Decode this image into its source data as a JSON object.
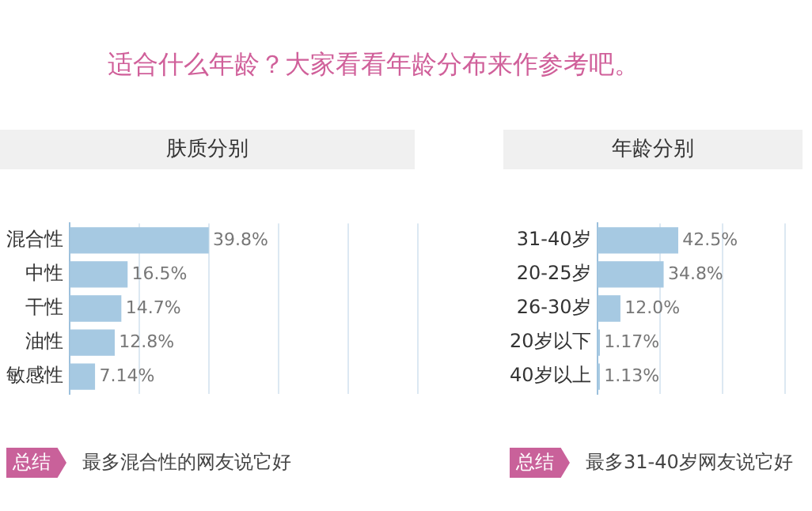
{
  "chart_data": [
    {
      "type": "bar",
      "orientation": "horizontal",
      "title": "肤质分别",
      "annotations": [
        "适合什么年龄？大家看看年龄分布来作参考吧。",
        "总结",
        "最多混合性的网友说它好"
      ],
      "categories": [
        "混合性",
        "中性",
        "干性",
        "油性",
        "敏感性"
      ],
      "values": [
        39.8,
        16.5,
        14.7,
        12.8,
        7.14
      ],
      "value_labels": [
        "39.8%",
        "16.5%",
        "14.7%",
        "12.8%",
        "7.14%"
      ],
      "color": "#a6c9e2",
      "xlim": [
        0,
        100
      ],
      "xticks": [
        {
          "value": 0,
          "label": null
        },
        {
          "value": 20,
          "label": null
        },
        {
          "value": 40,
          "label": null
        },
        {
          "value": 60,
          "label": null
        },
        {
          "value": 80,
          "label": null
        },
        {
          "value": 100,
          "label": null
        }
      ],
      "tick_labels": "y",
      "grid": "x"
    },
    {
      "type": "bar",
      "orientation": "horizontal",
      "title": "年龄分别",
      "annotations": [
        "总结",
        "最多31-40岁网友说它好"
      ],
      "categories": [
        "31-40岁",
        "20-25岁",
        "26-30岁",
        "20岁以下",
        "40岁以上"
      ],
      "values": [
        42.5,
        34.8,
        12.0,
        1.17,
        1.13
      ],
      "value_labels": [
        "42.5%",
        "34.8%",
        "12.0%",
        "1.17%",
        "1.13%"
      ],
      "color": "#a6c9e2",
      "xlim": [
        0,
        110
      ],
      "xticks": [
        {
          "value": 0,
          "label": null
        },
        {
          "value": 33,
          "label": null
        },
        {
          "value": 66,
          "label": null
        },
        {
          "value": 99,
          "label": null
        }
      ],
      "tick_labels": "y",
      "grid": "x"
    }
  ]
}
